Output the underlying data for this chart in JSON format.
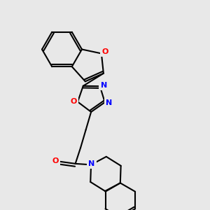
{
  "bg_color": "#e8e8e8",
  "bond_color": "#000000",
  "N_color": "#0000ff",
  "O_color": "#ff0000",
  "lw": 1.5,
  "dbl_off": 0.013,
  "figsize": [
    3.0,
    3.0
  ],
  "dpi": 100,
  "xlim": [
    0.0,
    1.0
  ],
  "ylim": [
    0.0,
    1.0
  ]
}
